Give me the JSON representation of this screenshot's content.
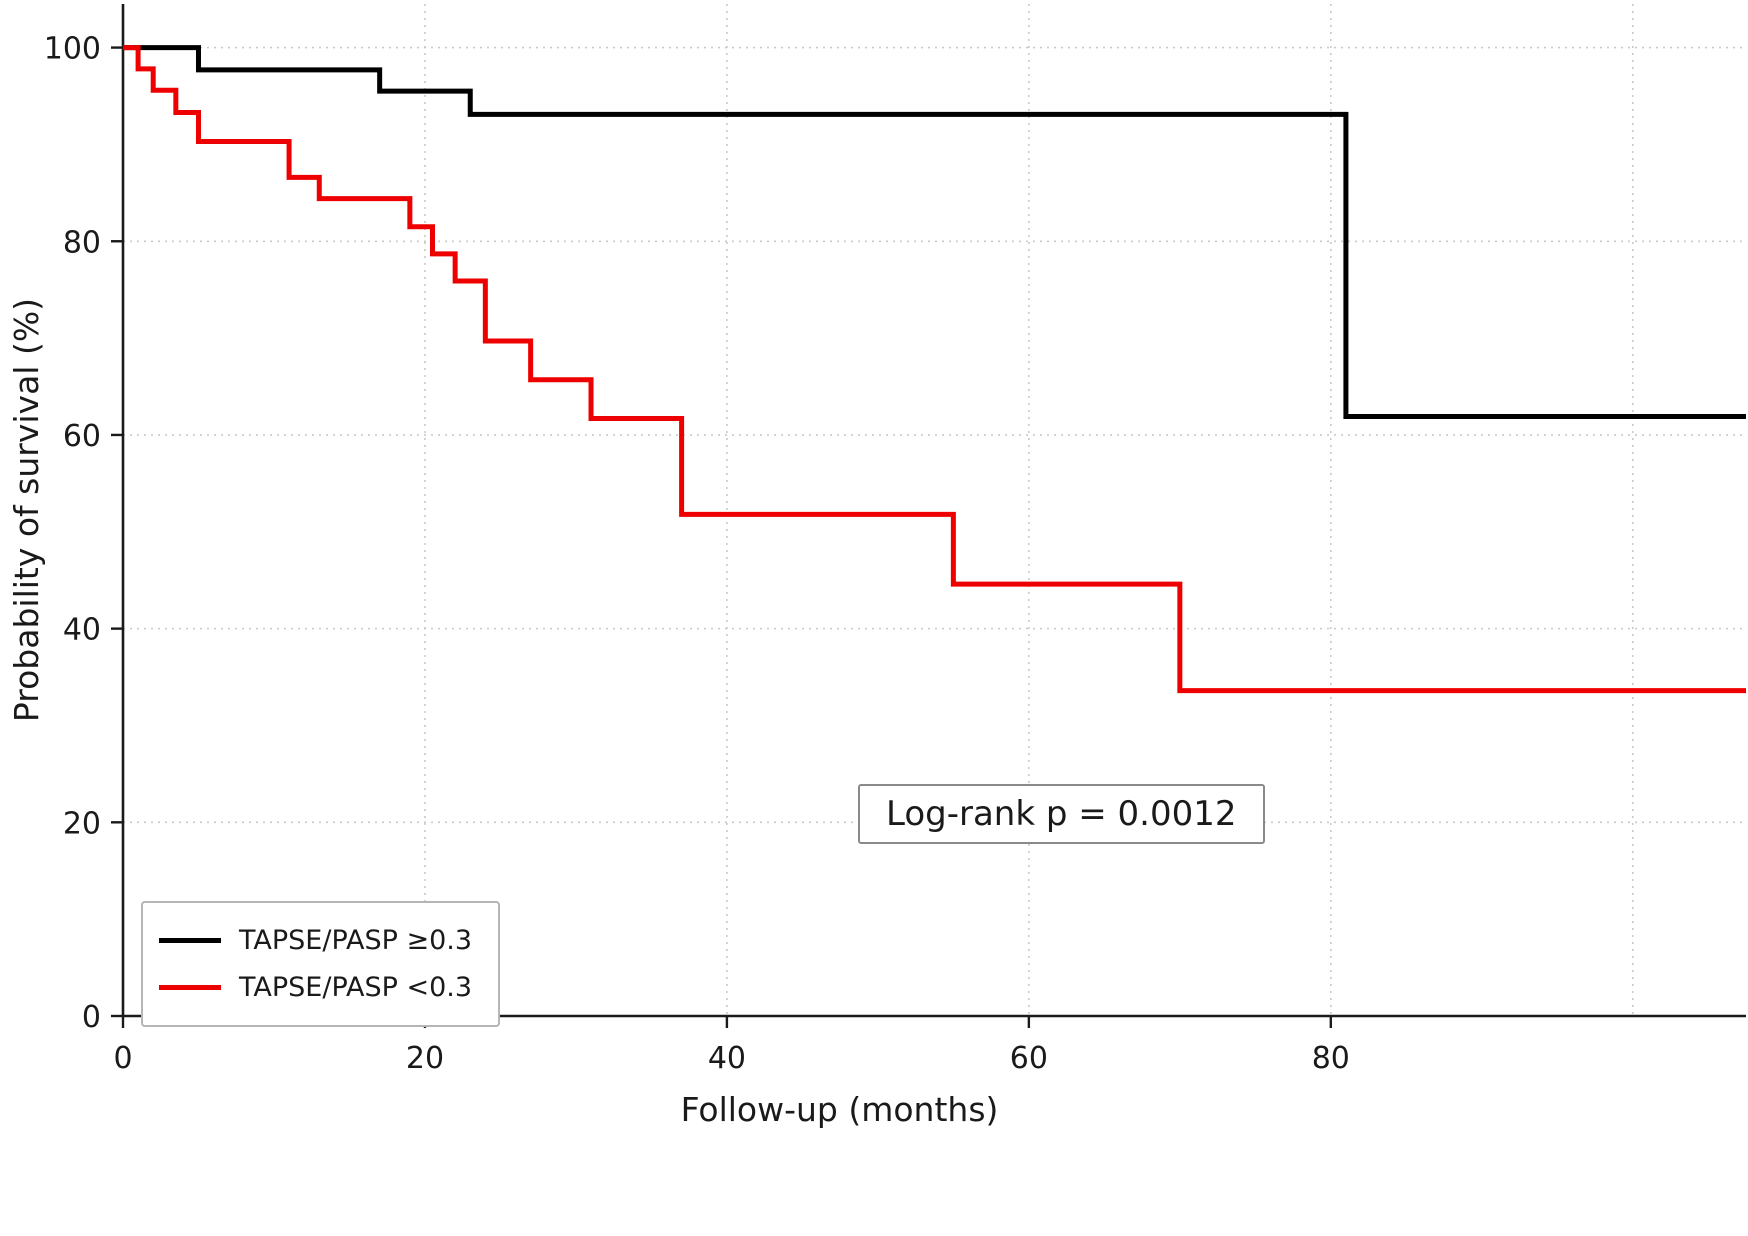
{
  "chart_data": {
    "type": "line",
    "subtype": "kaplan-meier-step",
    "title": "",
    "xlabel": "Follow-up (months)",
    "ylabel": "Probability of survival (%)",
    "xlim": [
      0,
      107.5
    ],
    "ylim": [
      0,
      104.5
    ],
    "x_ticks": [
      0,
      20,
      40,
      60,
      80
    ],
    "y_ticks": [
      0,
      20,
      40,
      60,
      80,
      100
    ],
    "x_grid": [
      20,
      40,
      60,
      80,
      100
    ],
    "y_grid": [
      20,
      40,
      60,
      80,
      100
    ],
    "grid": true,
    "grid_style": "dashed",
    "legend_position": "lower left",
    "annotation": "Log-rank p = 0.0012",
    "series": [
      {
        "name": "TAPSE/PASP ≥0.3",
        "color": "#000000",
        "line_width": 5,
        "points": [
          [
            0,
            100
          ],
          [
            5,
            97.7
          ],
          [
            17,
            95.5
          ],
          [
            23,
            93.1
          ],
          [
            81,
            61.9
          ],
          [
            107.5,
            61.9
          ]
        ]
      },
      {
        "name": "TAPSE/PASP <0.3",
        "color": "#ee0000",
        "line_width": 5,
        "points": [
          [
            0,
            100
          ],
          [
            1,
            97.8
          ],
          [
            2,
            95.6
          ],
          [
            3.5,
            93.3
          ],
          [
            5,
            90.3
          ],
          [
            11,
            86.6
          ],
          [
            13,
            84.4
          ],
          [
            19,
            81.5
          ],
          [
            20.5,
            78.7
          ],
          [
            22,
            75.9
          ],
          [
            24,
            69.7
          ],
          [
            27,
            65.7
          ],
          [
            31,
            61.7
          ],
          [
            37,
            51.8
          ],
          [
            55,
            44.6
          ],
          [
            70,
            33.6
          ],
          [
            107.5,
            33.6
          ]
        ]
      }
    ],
    "colors": {
      "axis": "#1a1a1a",
      "grid": "#c9c9c9",
      "background": "#ffffff"
    }
  }
}
